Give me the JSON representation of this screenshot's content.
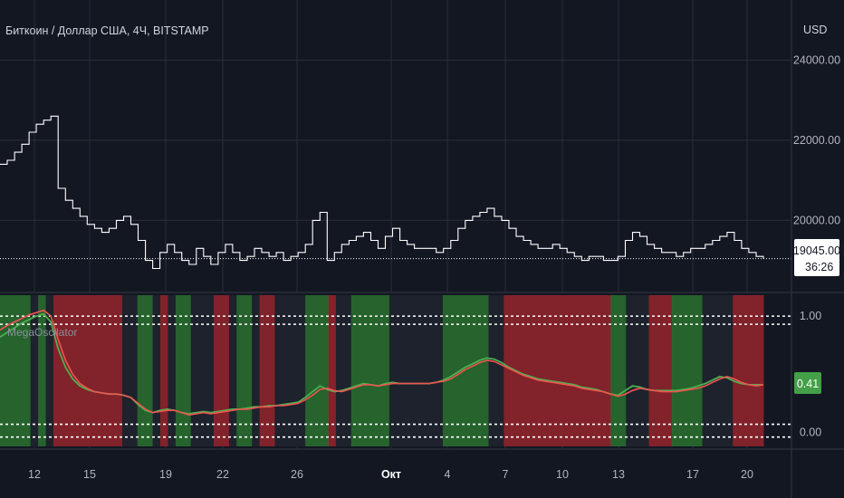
{
  "header": {
    "symbol_title": "Биткоин / Доллар США, 4Ч, BITSTAMP",
    "currency": "USD"
  },
  "price_badge": {
    "price": "19045.00",
    "countdown": "36:26"
  },
  "indicator": {
    "name": "MegaOscilator",
    "value_badge": "0.41"
  },
  "colors": {
    "background": "#131722",
    "grid": "#2a2e39",
    "price_line": "#ffffff",
    "bull_zone": "#2e7d32",
    "bear_zone": "#b2282e",
    "neutral_zone": "#1e222d",
    "osc_fast": "#ef5350",
    "osc_slow": "#4caf50",
    "badge_green": "#43a047"
  },
  "chart_data": [
    {
      "type": "line",
      "title": "Биткоин / Доллар США, 4Ч, BITSTAMP",
      "x_ticks": [
        "12",
        "15",
        "19",
        "22",
        "26",
        "Окт",
        "4",
        "7",
        "10",
        "13",
        "17",
        "20"
      ],
      "y_ticks": [
        "24000.00",
        "22000.00",
        "20000.00"
      ],
      "ylim": [
        18200,
        25500
      ],
      "current_price": 19045,
      "series": [
        {
          "values": [
            21400,
            21500,
            21700,
            21900,
            22200,
            22400,
            22500,
            22600,
            20800,
            20500,
            20300,
            20100,
            19900,
            19800,
            19700,
            19800,
            20000,
            20100,
            19900,
            19500,
            19000,
            18800,
            19200,
            19400,
            19200,
            19000,
            18900,
            19300,
            19100,
            18900,
            19200,
            19400,
            19200,
            19000,
            19100,
            19300,
            19200,
            19100,
            19200,
            19000,
            19100,
            19200,
            19400,
            20000,
            20200,
            19000,
            19200,
            19400,
            19500,
            19600,
            19700,
            19500,
            19300,
            19600,
            19800,
            19500,
            19400,
            19300,
            19300,
            19300,
            19200,
            19300,
            19500,
            19800,
            20000,
            20100,
            20200,
            20300,
            20100,
            20000,
            19800,
            19600,
            19500,
            19400,
            19300,
            19300,
            19400,
            19300,
            19200,
            19100,
            19000,
            19100,
            19100,
            19000,
            19000,
            19100,
            19500,
            19700,
            19600,
            19400,
            19300,
            19200,
            19200,
            19100,
            19200,
            19300,
            19300,
            19400,
            19500,
            19600,
            19700,
            19500,
            19300,
            19200,
            19100,
            19045
          ]
        }
      ]
    },
    {
      "type": "line",
      "title": "MegaOscilator",
      "y_ticks": [
        "1.00",
        "0.00"
      ],
      "ylim": [
        -0.12,
        1.18
      ],
      "levels": [
        1.0,
        0.93,
        0.07,
        -0.04
      ],
      "zones": [
        {
          "start": 0,
          "end": 0.04,
          "state": "bull"
        },
        {
          "start": 0.04,
          "end": 0.05,
          "state": "neutral"
        },
        {
          "start": 0.05,
          "end": 0.06,
          "state": "bull"
        },
        {
          "start": 0.06,
          "end": 0.07,
          "state": "neutral"
        },
        {
          "start": 0.07,
          "end": 0.16,
          "state": "bear"
        },
        {
          "start": 0.16,
          "end": 0.18,
          "state": "neutral"
        },
        {
          "start": 0.18,
          "end": 0.2,
          "state": "bull"
        },
        {
          "start": 0.2,
          "end": 0.21,
          "state": "neutral"
        },
        {
          "start": 0.21,
          "end": 0.22,
          "state": "bear"
        },
        {
          "start": 0.22,
          "end": 0.23,
          "state": "neutral"
        },
        {
          "start": 0.23,
          "end": 0.25,
          "state": "bull"
        },
        {
          "start": 0.25,
          "end": 0.28,
          "state": "neutral"
        },
        {
          "start": 0.28,
          "end": 0.3,
          "state": "bear"
        },
        {
          "start": 0.3,
          "end": 0.31,
          "state": "neutral"
        },
        {
          "start": 0.31,
          "end": 0.33,
          "state": "bull"
        },
        {
          "start": 0.33,
          "end": 0.34,
          "state": "neutral"
        },
        {
          "start": 0.34,
          "end": 0.36,
          "state": "bear"
        },
        {
          "start": 0.36,
          "end": 0.4,
          "state": "neutral"
        },
        {
          "start": 0.4,
          "end": 0.43,
          "state": "bull"
        },
        {
          "start": 0.43,
          "end": 0.44,
          "state": "bear"
        },
        {
          "start": 0.44,
          "end": 0.46,
          "state": "neutral"
        },
        {
          "start": 0.46,
          "end": 0.51,
          "state": "bull"
        },
        {
          "start": 0.51,
          "end": 0.58,
          "state": "neutral"
        },
        {
          "start": 0.58,
          "end": 0.64,
          "state": "bull"
        },
        {
          "start": 0.64,
          "end": 0.66,
          "state": "neutral"
        },
        {
          "start": 0.66,
          "end": 0.8,
          "state": "bear"
        },
        {
          "start": 0.8,
          "end": 0.82,
          "state": "bull"
        },
        {
          "start": 0.82,
          "end": 0.85,
          "state": "neutral"
        },
        {
          "start": 0.85,
          "end": 0.88,
          "state": "bear"
        },
        {
          "start": 0.88,
          "end": 0.92,
          "state": "bull"
        },
        {
          "start": 0.92,
          "end": 0.96,
          "state": "neutral"
        },
        {
          "start": 0.96,
          "end": 1.0,
          "state": "bear"
        }
      ],
      "series": [
        {
          "color": "#ef5350",
          "values": [
            0.88,
            0.92,
            0.95,
            0.98,
            1.01,
            1.03,
            1.05,
            1.0,
            0.8,
            0.62,
            0.5,
            0.42,
            0.38,
            0.35,
            0.34,
            0.33,
            0.33,
            0.32,
            0.3,
            0.25,
            0.2,
            0.17,
            0.18,
            0.19,
            0.19,
            0.17,
            0.15,
            0.16,
            0.17,
            0.16,
            0.17,
            0.18,
            0.19,
            0.2,
            0.2,
            0.21,
            0.22,
            0.22,
            0.23,
            0.23,
            0.24,
            0.25,
            0.28,
            0.32,
            0.37,
            0.38,
            0.36,
            0.35,
            0.37,
            0.39,
            0.41,
            0.41,
            0.4,
            0.41,
            0.42,
            0.42,
            0.42,
            0.42,
            0.42,
            0.42,
            0.43,
            0.44,
            0.46,
            0.5,
            0.54,
            0.57,
            0.6,
            0.62,
            0.61,
            0.58,
            0.55,
            0.52,
            0.49,
            0.47,
            0.45,
            0.44,
            0.43,
            0.42,
            0.41,
            0.4,
            0.38,
            0.37,
            0.36,
            0.35,
            0.33,
            0.31,
            0.33,
            0.36,
            0.38,
            0.37,
            0.36,
            0.35,
            0.35,
            0.35,
            0.36,
            0.37,
            0.38,
            0.4,
            0.43,
            0.46,
            0.48,
            0.46,
            0.43,
            0.41,
            0.4,
            0.41
          ]
        },
        {
          "color": "#4caf50",
          "values": [
            0.82,
            0.86,
            0.9,
            0.94,
            0.97,
            1.0,
            1.02,
            0.95,
            0.72,
            0.56,
            0.46,
            0.4,
            0.37,
            0.35,
            0.34,
            0.33,
            0.33,
            0.32,
            0.3,
            0.24,
            0.19,
            0.17,
            0.19,
            0.2,
            0.19,
            0.17,
            0.16,
            0.17,
            0.18,
            0.17,
            0.18,
            0.19,
            0.2,
            0.2,
            0.21,
            0.22,
            0.22,
            0.23,
            0.23,
            0.24,
            0.25,
            0.26,
            0.3,
            0.35,
            0.4,
            0.37,
            0.35,
            0.36,
            0.38,
            0.4,
            0.42,
            0.41,
            0.4,
            0.42,
            0.43,
            0.42,
            0.42,
            0.42,
            0.42,
            0.42,
            0.43,
            0.45,
            0.48,
            0.52,
            0.56,
            0.59,
            0.62,
            0.64,
            0.63,
            0.6,
            0.56,
            0.53,
            0.5,
            0.48,
            0.46,
            0.45,
            0.44,
            0.43,
            0.42,
            0.41,
            0.39,
            0.38,
            0.37,
            0.35,
            0.33,
            0.32,
            0.36,
            0.4,
            0.39,
            0.37,
            0.36,
            0.36,
            0.36,
            0.36,
            0.37,
            0.38,
            0.4,
            0.42,
            0.45,
            0.48,
            0.47,
            0.44,
            0.42,
            0.41,
            0.41,
            0.41
          ]
        }
      ]
    }
  ]
}
